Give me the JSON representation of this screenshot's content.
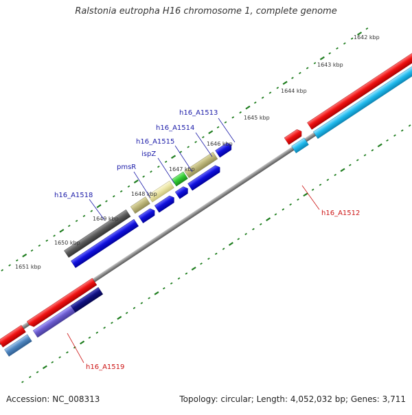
{
  "title": "Ralstonia eutropha H16 chromosome 1, complete genome",
  "footer": {
    "accession": "Accession: NC_008313",
    "topology": "Topology: circular; Length: 4,052,032 bp; Genes: 3,711"
  },
  "ticks": [
    "1642 kbp",
    "1643 kbp",
    "1644 kbp",
    "1645 kbp",
    "1646 kbp",
    "1647 kbp",
    "1648 kbp",
    "1649 kbp",
    "1650 kbp",
    "1651 kbp"
  ],
  "gene_labels": {
    "a1513": "h16_A1513",
    "a1514": "h16_A1514",
    "a1515": "h16_A1515",
    "ispz": "ispZ",
    "pmsr": "pmsR",
    "a1518": "h16_A1518",
    "a1512": "h16_A1512",
    "a1519": "h16_A1519"
  },
  "colors": {
    "backbone": "#8a8a8a",
    "label_blue": "#1a1aa8",
    "label_red": "#cc1111",
    "tick_green": "#1e7d1e",
    "cds_red": "#ee1111",
    "cds_cyan": "#22bbee",
    "cds_blue": "#1111dd",
    "cds_gray": "#5a5a5a",
    "cds_khaki": "#bdb67a",
    "cds_lightkhaki": "#ece6a6",
    "cds_green": "#33cc33",
    "cds_slate": "#6a5acd",
    "cds_navy": "#101080",
    "cds_steel": "#4f86c0"
  }
}
